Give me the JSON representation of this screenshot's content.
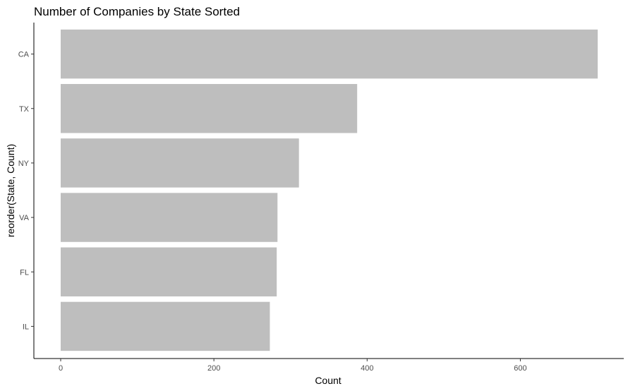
{
  "chart_data": {
    "type": "bar",
    "orientation": "horizontal",
    "title": "Number of Companies by State Sorted",
    "xlabel": "Count",
    "ylabel": "reorder(State, Count)",
    "categories": [
      "CA",
      "TX",
      "NY",
      "VA",
      "FL",
      "IL"
    ],
    "values": [
      701,
      387,
      311,
      283,
      282,
      273
    ],
    "xlim": [
      -35,
      735
    ],
    "xticks": [
      0,
      200,
      400,
      600
    ],
    "bar_color": "#bebebe",
    "grid": false,
    "legend": "none"
  }
}
